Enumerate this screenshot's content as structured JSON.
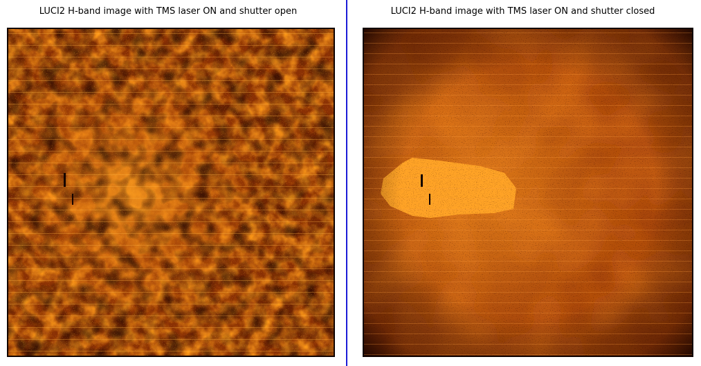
{
  "panels": [
    {
      "title": "LUCI2 H-band image with TMS laser ON and shutter open",
      "state": "shutter open"
    },
    {
      "title": "LUCI2 H-band image with TMS laser ON and shutter closed",
      "state": "shutter closed"
    }
  ],
  "divider": {
    "color": "#1a1ad6"
  },
  "colormap": {
    "dark": "#1a0500",
    "mid": "#b84a05",
    "bright": "#ffa020"
  }
}
